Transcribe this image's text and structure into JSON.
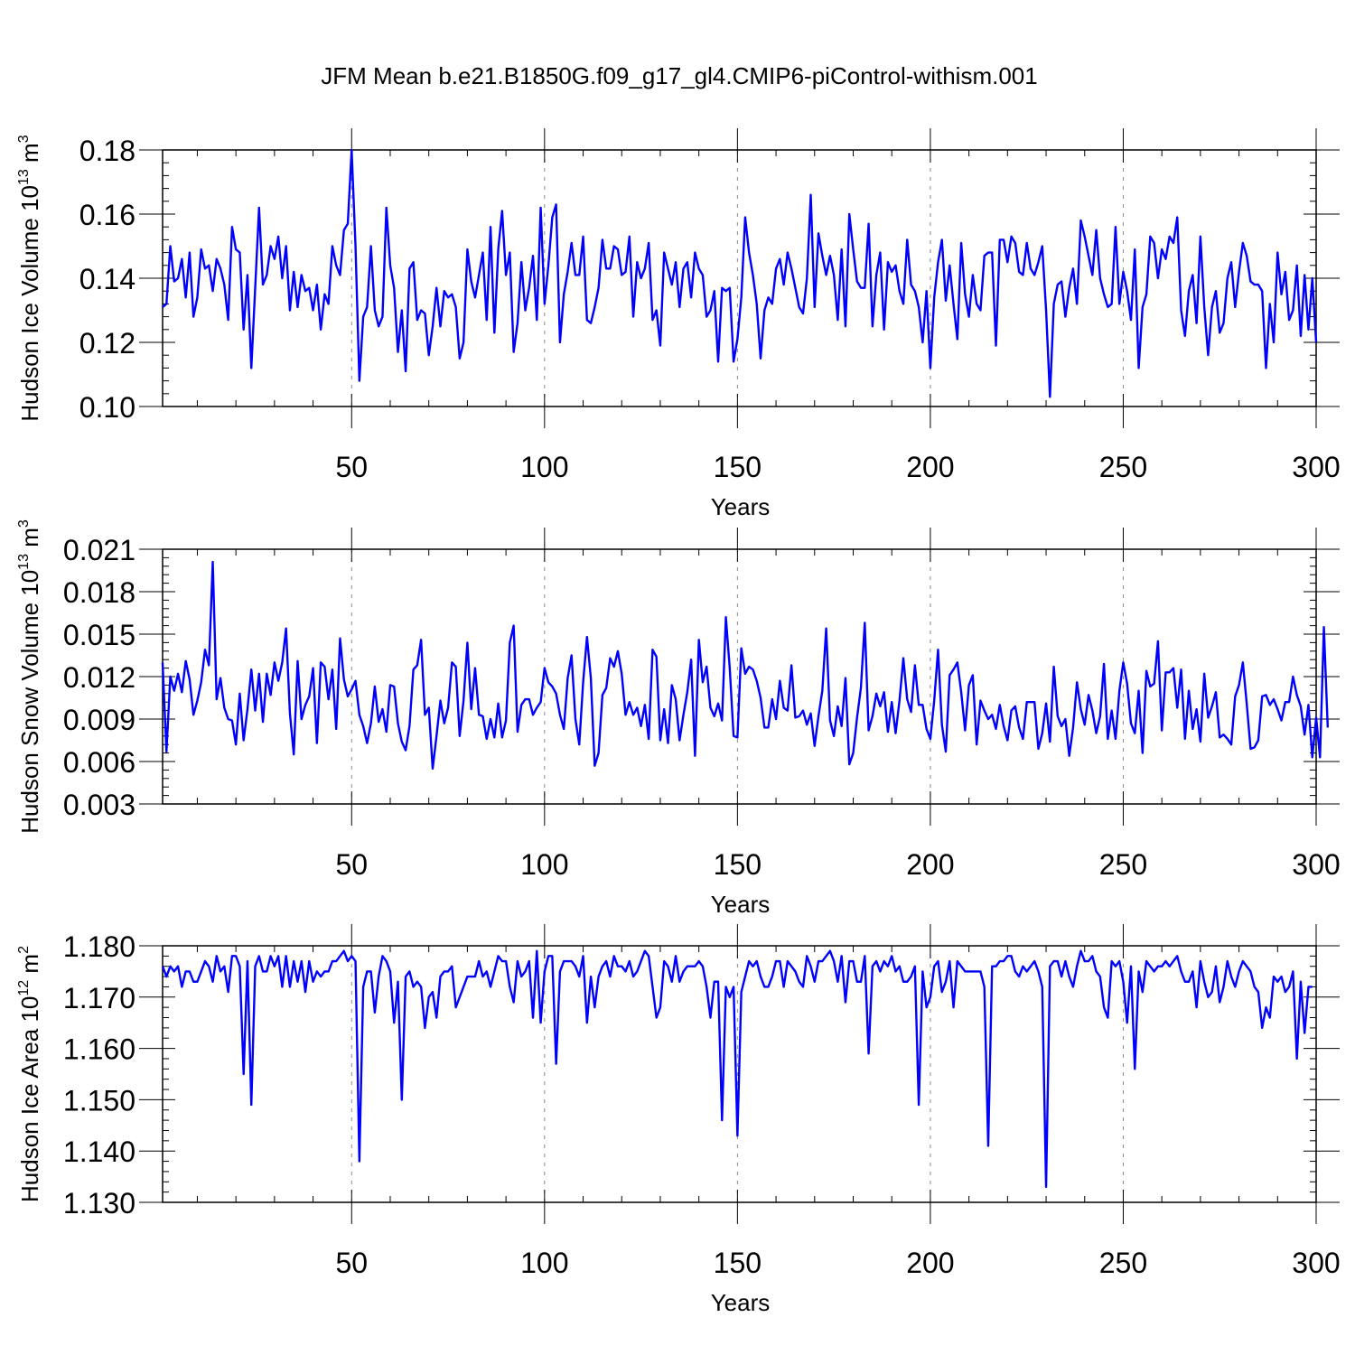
{
  "title": "JFM Mean b.e21.B1850G.f09_g17_gl4.CMIP6-piControl-withism.001",
  "line_color": "#0000ff",
  "chart_data": [
    {
      "type": "line",
      "ylabel": {
        "text": "Hudson Ice Volume 10",
        "sup": "13",
        "unit": " m",
        "unit_sup": "3"
      },
      "xlabel": "Years",
      "xlim": [
        1,
        300
      ],
      "ylim": [
        0.1,
        0.18
      ],
      "xticks": [
        50,
        100,
        150,
        200,
        250,
        300
      ],
      "yticks": [
        0.1,
        0.12,
        0.14,
        0.16,
        0.18
      ],
      "ytick_labels": [
        "0.10",
        "0.12",
        "0.14",
        "0.16",
        "0.18"
      ],
      "series": [
        {
          "x_start": 1,
          "values": [
            0.131,
            0.132,
            0.15,
            0.139,
            0.14,
            0.146,
            0.134,
            0.148,
            0.128,
            0.134,
            0.149,
            0.143,
            0.144,
            0.136,
            0.146,
            0.143,
            0.138,
            0.127,
            0.156,
            0.149,
            0.148,
            0.124,
            0.141,
            0.112,
            0.137,
            0.162,
            0.138,
            0.141,
            0.15,
            0.146,
            0.153,
            0.14,
            0.15,
            0.13,
            0.142,
            0.131,
            0.141,
            0.136,
            0.137,
            0.13,
            0.138,
            0.124,
            0.135,
            0.132,
            0.15,
            0.144,
            0.141,
            0.155,
            0.157,
            0.18,
            0.15,
            0.108,
            0.128,
            0.131,
            0.15,
            0.13,
            0.125,
            0.128,
            0.162,
            0.144,
            0.137,
            0.117,
            0.13,
            0.111,
            0.143,
            0.145,
            0.127,
            0.13,
            0.129,
            0.116,
            0.125,
            0.137,
            0.125,
            0.136,
            0.134,
            0.135,
            0.131,
            0.115,
            0.12,
            0.149,
            0.139,
            0.134,
            0.141,
            0.148,
            0.127,
            0.156,
            0.123,
            0.149,
            0.161,
            0.141,
            0.148,
            0.117,
            0.126,
            0.145,
            0.13,
            0.137,
            0.147,
            0.127,
            0.162,
            0.132,
            0.144,
            0.159,
            0.163,
            0.12,
            0.135,
            0.142,
            0.151,
            0.141,
            0.141,
            0.153,
            0.127,
            0.126,
            0.131,
            0.137,
            0.152,
            0.143,
            0.143,
            0.15,
            0.149,
            0.141,
            0.142,
            0.153,
            0.128,
            0.145,
            0.14,
            0.143,
            0.151,
            0.127,
            0.13,
            0.119,
            0.148,
            0.143,
            0.138,
            0.145,
            0.131,
            0.143,
            0.145,
            0.134,
            0.148,
            0.143,
            0.141,
            0.128,
            0.13,
            0.136,
            0.114,
            0.137,
            0.136,
            0.137,
            0.114,
            0.121,
            0.134,
            0.159,
            0.148,
            0.141,
            0.132,
            0.115,
            0.13,
            0.134,
            0.132,
            0.143,
            0.146,
            0.138,
            0.148,
            0.143,
            0.137,
            0.131,
            0.129,
            0.14,
            0.166,
            0.131,
            0.154,
            0.147,
            0.141,
            0.147,
            0.141,
            0.127,
            0.149,
            0.125,
            0.16,
            0.149,
            0.139,
            0.137,
            0.137,
            0.157,
            0.125,
            0.141,
            0.148,
            0.124,
            0.145,
            0.142,
            0.144,
            0.136,
            0.132,
            0.152,
            0.138,
            0.136,
            0.131,
            0.12,
            0.136,
            0.112,
            0.134,
            0.145,
            0.152,
            0.133,
            0.144,
            0.132,
            0.121,
            0.151,
            0.135,
            0.128,
            0.141,
            0.132,
            0.13,
            0.147,
            0.148,
            0.148,
            0.119,
            0.152,
            0.152,
            0.145,
            0.153,
            0.151,
            0.142,
            0.141,
            0.151,
            0.143,
            0.141,
            0.145,
            0.15,
            0.13,
            0.103,
            0.132,
            0.138,
            0.139,
            0.128,
            0.137,
            0.143,
            0.132,
            0.158,
            0.153,
            0.147,
            0.141,
            0.155,
            0.14,
            0.135,
            0.131,
            0.132,
            0.156,
            0.132,
            0.142,
            0.136,
            0.127,
            0.149,
            0.112,
            0.131,
            0.135,
            0.153,
            0.151,
            0.14,
            0.149,
            0.146,
            0.153,
            0.151,
            0.159,
            0.13,
            0.122,
            0.136,
            0.141,
            0.126,
            0.153,
            0.131,
            0.116,
            0.131,
            0.136,
            0.123,
            0.126,
            0.14,
            0.145,
            0.131,
            0.142,
            0.151,
            0.147,
            0.139,
            0.138,
            0.138,
            0.136,
            0.112,
            0.132,
            0.12,
            0.148,
            0.135,
            0.142,
            0.127,
            0.13,
            0.144,
            0.122,
            0.141,
            0.124,
            0.14,
            0.12
          ]
        }
      ]
    },
    {
      "type": "line",
      "ylabel": {
        "text": "Hudson Snow Volume 10",
        "sup": "13",
        "unit": " m",
        "unit_sup": "3"
      },
      "xlabel": "Years",
      "xlim": [
        1,
        300
      ],
      "ylim": [
        0.003,
        0.021
      ],
      "xticks": [
        50,
        100,
        150,
        200,
        250,
        300
      ],
      "yticks": [
        0.003,
        0.006,
        0.009,
        0.012,
        0.015,
        0.018,
        0.021
      ],
      "ytick_labels": [
        "0.003",
        "0.006",
        "0.009",
        "0.012",
        "0.015",
        "0.018",
        "0.021"
      ],
      "series": [
        {
          "x_start": 1,
          "values": [
            0.013,
            0.0067,
            0.012,
            0.011,
            0.0122,
            0.0109,
            0.0131,
            0.0118,
            0.0093,
            0.0103,
            0.0116,
            0.0139,
            0.0128,
            0.0201,
            0.0104,
            0.0119,
            0.0098,
            0.009,
            0.0089,
            0.0072,
            0.0108,
            0.0075,
            0.0097,
            0.0125,
            0.0096,
            0.0122,
            0.0088,
            0.0122,
            0.0107,
            0.013,
            0.0117,
            0.013,
            0.0154,
            0.0094,
            0.0065,
            0.0131,
            0.009,
            0.01,
            0.0106,
            0.0126,
            0.0073,
            0.013,
            0.0127,
            0.0104,
            0.0125,
            0.0083,
            0.0147,
            0.0118,
            0.0106,
            0.0111,
            0.0117,
            0.0093,
            0.0085,
            0.0073,
            0.0087,
            0.0113,
            0.0088,
            0.0097,
            0.0081,
            0.0114,
            0.0113,
            0.0087,
            0.0074,
            0.0068,
            0.0085,
            0.0125,
            0.0128,
            0.0146,
            0.0093,
            0.0098,
            0.0055,
            0.0078,
            0.0103,
            0.0087,
            0.0098,
            0.013,
            0.0127,
            0.0078,
            0.0103,
            0.0144,
            0.0097,
            0.0126,
            0.0093,
            0.0092,
            0.0076,
            0.009,
            0.0077,
            0.0101,
            0.0077,
            0.0089,
            0.0144,
            0.0156,
            0.0081,
            0.01,
            0.0104,
            0.0104,
            0.0093,
            0.0098,
            0.0102,
            0.0126,
            0.0116,
            0.0113,
            0.0108,
            0.0093,
            0.0083,
            0.0119,
            0.0135,
            0.009,
            0.0072,
            0.0116,
            0.0148,
            0.0119,
            0.0057,
            0.0066,
            0.0107,
            0.0112,
            0.0133,
            0.0127,
            0.0138,
            0.0122,
            0.0093,
            0.0102,
            0.0093,
            0.0098,
            0.0085,
            0.01,
            0.0076,
            0.0139,
            0.0134,
            0.0075,
            0.0097,
            0.0073,
            0.0114,
            0.0104,
            0.0075,
            0.0093,
            0.0109,
            0.0132,
            0.0064,
            0.0146,
            0.0116,
            0.0127,
            0.0098,
            0.0092,
            0.0101,
            0.0089,
            0.0162,
            0.0126,
            0.0078,
            0.0077,
            0.014,
            0.0122,
            0.0127,
            0.0125,
            0.0117,
            0.0105,
            0.0084,
            0.0084,
            0.0104,
            0.009,
            0.0117,
            0.0098,
            0.0096,
            0.0128,
            0.0091,
            0.0092,
            0.0096,
            0.0086,
            0.0094,
            0.0071,
            0.0092,
            0.011,
            0.0154,
            0.0089,
            0.0078,
            0.0099,
            0.0085,
            0.0119,
            0.0058,
            0.0066,
            0.0091,
            0.0112,
            0.0158,
            0.0082,
            0.0092,
            0.0108,
            0.0099,
            0.0109,
            0.0081,
            0.0102,
            0.008,
            0.0103,
            0.0133,
            0.0104,
            0.0095,
            0.0128,
            0.01,
            0.01,
            0.0083,
            0.0076,
            0.0103,
            0.0139,
            0.0086,
            0.0067,
            0.0121,
            0.0125,
            0.013,
            0.0109,
            0.0082,
            0.0114,
            0.0121,
            0.0072,
            0.0103,
            0.0096,
            0.009,
            0.0093,
            0.0083,
            0.01,
            0.0085,
            0.0075,
            0.0096,
            0.0099,
            0.0084,
            0.0076,
            0.0102,
            0.0102,
            0.0102,
            0.0069,
            0.008,
            0.0101,
            0.0074,
            0.0127,
            0.0092,
            0.0085,
            0.009,
            0.0064,
            0.0084,
            0.0116,
            0.0097,
            0.0086,
            0.0107,
            0.0096,
            0.008,
            0.0092,
            0.0129,
            0.0076,
            0.0096,
            0.0076,
            0.011,
            0.013,
            0.0115,
            0.0087,
            0.008,
            0.011,
            0.0066,
            0.0124,
            0.0113,
            0.0115,
            0.0145,
            0.0082,
            0.0123,
            0.0123,
            0.0126,
            0.0098,
            0.0125,
            0.0076,
            0.011,
            0.0083,
            0.0097,
            0.0074,
            0.0122,
            0.0091,
            0.0099,
            0.0109,
            0.0077,
            0.0079,
            0.0076,
            0.0072,
            0.0106,
            0.0114,
            0.013,
            0.0101,
            0.0069,
            0.007,
            0.0075,
            0.0106,
            0.0107,
            0.01,
            0.0104,
            0.0097,
            0.0089,
            0.0102,
            0.0102,
            0.012,
            0.0107,
            0.0099,
            0.0079,
            0.01,
            0.0063,
            0.0091,
            0.0063,
            0.0155,
            0.0084
          ]
        }
      ]
    },
    {
      "type": "line",
      "ylabel": {
        "text": "Hudson Ice Area 10",
        "sup": "12",
        "unit": " m",
        "unit_sup": "2"
      },
      "xlabel": "Years",
      "xlim": [
        1,
        300
      ],
      "ylim": [
        1.13,
        1.18
      ],
      "xticks": [
        50,
        100,
        150,
        200,
        250,
        300
      ],
      "yticks": [
        1.13,
        1.14,
        1.15,
        1.16,
        1.17,
        1.18
      ],
      "ytick_labels": [
        "1.130",
        "1.140",
        "1.150",
        "1.160",
        "1.170",
        "1.180"
      ],
      "series": [
        {
          "x_start": 1,
          "values": [
            1.176,
            1.174,
            1.176,
            1.175,
            1.176,
            1.172,
            1.175,
            1.175,
            1.173,
            1.173,
            1.175,
            1.177,
            1.176,
            1.173,
            1.178,
            1.175,
            1.176,
            1.171,
            1.178,
            1.178,
            1.176,
            1.155,
            1.177,
            1.149,
            1.176,
            1.178,
            1.175,
            1.175,
            1.178,
            1.176,
            1.178,
            1.172,
            1.178,
            1.172,
            1.177,
            1.173,
            1.177,
            1.171,
            1.177,
            1.173,
            1.175,
            1.174,
            1.175,
            1.175,
            1.177,
            1.177,
            1.178,
            1.179,
            1.177,
            1.178,
            1.177,
            1.138,
            1.172,
            1.175,
            1.175,
            1.167,
            1.174,
            1.178,
            1.177,
            1.175,
            1.165,
            1.173,
            1.15,
            1.174,
            1.175,
            1.172,
            1.173,
            1.172,
            1.164,
            1.17,
            1.171,
            1.166,
            1.174,
            1.175,
            1.175,
            1.176,
            1.168,
            1.17,
            1.172,
            1.174,
            1.174,
            1.174,
            1.177,
            1.174,
            1.175,
            1.172,
            1.175,
            1.178,
            1.177,
            1.177,
            1.172,
            1.169,
            1.177,
            1.174,
            1.175,
            1.177,
            1.166,
            1.179,
            1.165,
            1.175,
            1.178,
            1.178,
            1.157,
            1.175,
            1.177,
            1.177,
            1.177,
            1.176,
            1.174,
            1.178,
            1.165,
            1.174,
            1.168,
            1.174,
            1.176,
            1.177,
            1.174,
            1.178,
            1.176,
            1.176,
            1.175,
            1.177,
            1.174,
            1.175,
            1.177,
            1.179,
            1.178,
            1.172,
            1.166,
            1.168,
            1.177,
            1.176,
            1.173,
            1.178,
            1.173,
            1.175,
            1.176,
            1.176,
            1.176,
            1.177,
            1.176,
            1.172,
            1.166,
            1.173,
            1.173,
            1.146,
            1.172,
            1.17,
            1.172,
            1.143,
            1.171,
            1.174,
            1.177,
            1.176,
            1.177,
            1.174,
            1.172,
            1.172,
            1.174,
            1.177,
            1.177,
            1.172,
            1.177,
            1.176,
            1.175,
            1.173,
            1.172,
            1.178,
            1.176,
            1.173,
            1.177,
            1.177,
            1.178,
            1.179,
            1.177,
            1.173,
            1.178,
            1.169,
            1.177,
            1.177,
            1.173,
            1.173,
            1.178,
            1.159,
            1.176,
            1.177,
            1.175,
            1.177,
            1.176,
            1.178,
            1.175,
            1.176,
            1.173,
            1.173,
            1.174,
            1.176,
            1.149,
            1.175,
            1.168,
            1.17,
            1.176,
            1.177,
            1.171,
            1.173,
            1.177,
            1.168,
            1.177,
            1.176,
            1.175,
            1.175,
            1.175,
            1.175,
            1.175,
            1.172,
            1.141,
            1.176,
            1.176,
            1.177,
            1.177,
            1.178,
            1.178,
            1.175,
            1.174,
            1.176,
            1.175,
            1.176,
            1.177,
            1.175,
            1.172,
            1.133,
            1.176,
            1.177,
            1.177,
            1.174,
            1.177,
            1.174,
            1.172,
            1.176,
            1.179,
            1.177,
            1.177,
            1.178,
            1.175,
            1.174,
            1.168,
            1.166,
            1.177,
            1.176,
            1.177,
            1.173,
            1.165,
            1.176,
            1.156,
            1.175,
            1.171,
            1.177,
            1.176,
            1.175,
            1.176,
            1.176,
            1.177,
            1.176,
            1.177,
            1.178,
            1.175,
            1.173,
            1.173,
            1.175,
            1.168,
            1.177,
            1.173,
            1.17,
            1.171,
            1.176,
            1.169,
            1.172,
            1.177,
            1.174,
            1.172,
            1.175,
            1.177,
            1.176,
            1.175,
            1.172,
            1.171,
            1.164,
            1.168,
            1.166,
            1.174,
            1.173,
            1.174,
            1.171,
            1.172,
            1.175,
            1.158,
            1.173,
            1.163,
            1.172,
            1.172
          ]
        }
      ]
    }
  ]
}
